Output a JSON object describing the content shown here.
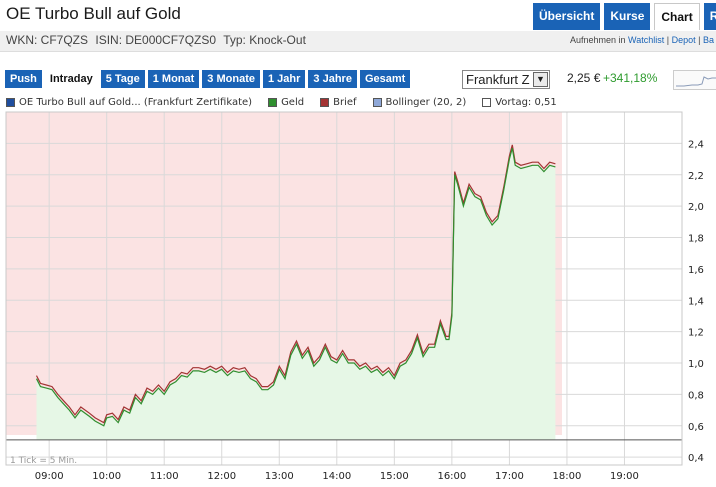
{
  "header": {
    "title": "OE Turbo Bull auf Gold",
    "tabs": [
      {
        "label": "Übersicht",
        "active": false
      },
      {
        "label": "Kurse",
        "active": false
      },
      {
        "label": "Chart",
        "active": true
      },
      {
        "label": "R",
        "active": false
      }
    ]
  },
  "info": {
    "wkn": "WKN: CF7QZS",
    "isin": "ISIN: DE000CF7QZS0",
    "typ": "Typ: Knock-Out",
    "watchlist_prefix": "Aufnehmen in",
    "watchlist_link": "Watchlist",
    "separator": "|",
    "depot_link": "Depot",
    "more_link": "Ba"
  },
  "toolbar": {
    "ranges": [
      {
        "label": "Push",
        "active": false
      },
      {
        "label": "Intraday",
        "active": true
      },
      {
        "label": "5 Tage",
        "active": false
      },
      {
        "label": "1 Monat",
        "active": false
      },
      {
        "label": "3 Monate",
        "active": false
      },
      {
        "label": "1 Jahr",
        "active": false
      },
      {
        "label": "3 Jahre",
        "active": false
      },
      {
        "label": "Gesamt",
        "active": false
      }
    ],
    "exchange_selected": "Frankfurt Z",
    "price": "2,25 €",
    "change": "+341,18%"
  },
  "legend": [
    {
      "label": "OE Turbo Bull auf Gold... (Frankfurt Zertifikate)",
      "color": "#1f4e9e"
    },
    {
      "label": "Geld",
      "color": "#2f8f2f"
    },
    {
      "label": "Brief",
      "color": "#a33333"
    },
    {
      "label": "Bollinger (20, 2)",
      "color": "#8fa8d8"
    },
    {
      "label": "Vortag: 0,51",
      "color": "#ffffff"
    }
  ],
  "colors": {
    "bid": "#2f8f2f",
    "ask": "#a33333",
    "above_prev": "#e6f7e6",
    "below_prev": "#fbe3e3",
    "prev_close_line": "#555555"
  },
  "chart_data": {
    "type": "line",
    "ylim": [
      0.35,
      2.6
    ],
    "y_ticks": [
      0.4,
      0.6,
      0.8,
      1.0,
      1.2,
      1.4,
      1.6,
      1.8,
      2.0,
      2.2,
      2.4
    ],
    "y_tick_labels": [
      "0,4",
      "0,6",
      "0,8",
      "1,0",
      "1,2",
      "1,4",
      "1,6",
      "1,8",
      "2,0",
      "2,2",
      "2,4"
    ],
    "x_tick_labels": [
      "09:00",
      "10:00",
      "11:00",
      "12:00",
      "13:00",
      "14:00",
      "15:00",
      "16:00",
      "17:00",
      "18:00",
      "19:00"
    ],
    "x_range_hours": [
      8.25,
      20.0
    ],
    "prev_close": 0.51,
    "note": "1 Tick = 5 Min.",
    "series": [
      {
        "name": "Geld",
        "x": [
          8.78,
          8.85,
          8.95,
          9.05,
          9.15,
          9.25,
          9.35,
          9.45,
          9.55,
          9.7,
          9.8,
          9.95,
          10.0,
          10.1,
          10.2,
          10.3,
          10.4,
          10.5,
          10.6,
          10.7,
          10.8,
          10.9,
          11.0,
          11.1,
          11.2,
          11.3,
          11.4,
          11.5,
          11.6,
          11.7,
          11.8,
          11.9,
          12.0,
          12.1,
          12.2,
          12.3,
          12.4,
          12.5,
          12.6,
          12.7,
          12.8,
          12.9,
          13.0,
          13.1,
          13.2,
          13.3,
          13.4,
          13.5,
          13.6,
          13.7,
          13.8,
          13.9,
          14.0,
          14.1,
          14.2,
          14.3,
          14.4,
          14.5,
          14.6,
          14.7,
          14.8,
          14.9,
          15.0,
          15.1,
          15.2,
          15.3,
          15.4,
          15.5,
          15.6,
          15.7,
          15.8,
          15.9,
          15.95,
          16.0,
          16.02,
          16.05,
          16.1,
          16.2,
          16.3,
          16.4,
          16.5,
          16.6,
          16.7,
          16.8,
          16.9,
          17.0,
          17.05,
          17.1,
          17.2,
          17.3,
          17.4,
          17.5,
          17.6,
          17.7,
          17.8
        ],
        "values": [
          0.9,
          0.85,
          0.84,
          0.83,
          0.78,
          0.74,
          0.7,
          0.65,
          0.7,
          0.66,
          0.63,
          0.6,
          0.65,
          0.66,
          0.62,
          0.7,
          0.68,
          0.78,
          0.74,
          0.82,
          0.8,
          0.84,
          0.8,
          0.86,
          0.88,
          0.92,
          0.91,
          0.95,
          0.95,
          0.94,
          0.96,
          0.94,
          0.96,
          0.92,
          0.95,
          0.94,
          0.95,
          0.9,
          0.88,
          0.83,
          0.83,
          0.86,
          0.96,
          0.9,
          1.05,
          1.12,
          1.03,
          1.08,
          0.98,
          1.02,
          1.1,
          1.02,
          1.0,
          1.06,
          1.0,
          1.0,
          0.96,
          0.98,
          0.94,
          0.96,
          0.92,
          0.95,
          0.9,
          0.98,
          1.0,
          1.06,
          1.16,
          1.04,
          1.1,
          1.1,
          1.25,
          1.15,
          1.15,
          1.3,
          1.65,
          2.2,
          2.14,
          2.0,
          2.12,
          2.06,
          2.04,
          1.94,
          1.88,
          1.92,
          2.1,
          2.3,
          2.37,
          2.26,
          2.24,
          2.25,
          2.26,
          2.26,
          2.22,
          2.26,
          2.25
        ]
      },
      {
        "name": "Brief",
        "x": [
          8.78,
          8.85,
          8.95,
          9.05,
          9.15,
          9.25,
          9.35,
          9.45,
          9.55,
          9.7,
          9.8,
          9.95,
          10.0,
          10.1,
          10.2,
          10.3,
          10.4,
          10.5,
          10.6,
          10.7,
          10.8,
          10.9,
          11.0,
          11.1,
          11.2,
          11.3,
          11.4,
          11.5,
          11.6,
          11.7,
          11.8,
          11.9,
          12.0,
          12.1,
          12.2,
          12.3,
          12.4,
          12.5,
          12.6,
          12.7,
          12.8,
          12.9,
          13.0,
          13.1,
          13.2,
          13.3,
          13.4,
          13.5,
          13.6,
          13.7,
          13.8,
          13.9,
          14.0,
          14.1,
          14.2,
          14.3,
          14.4,
          14.5,
          14.6,
          14.7,
          14.8,
          14.9,
          15.0,
          15.1,
          15.2,
          15.3,
          15.4,
          15.5,
          15.6,
          15.7,
          15.8,
          15.9,
          15.95,
          16.0,
          16.02,
          16.05,
          16.1,
          16.2,
          16.3,
          16.4,
          16.5,
          16.6,
          16.7,
          16.8,
          16.9,
          17.0,
          17.05,
          17.1,
          17.2,
          17.3,
          17.4,
          17.5,
          17.6,
          17.7,
          17.8
        ],
        "values": [
          0.92,
          0.87,
          0.86,
          0.85,
          0.8,
          0.76,
          0.72,
          0.67,
          0.72,
          0.68,
          0.65,
          0.62,
          0.67,
          0.68,
          0.64,
          0.72,
          0.7,
          0.8,
          0.76,
          0.84,
          0.82,
          0.86,
          0.82,
          0.88,
          0.9,
          0.94,
          0.93,
          0.97,
          0.97,
          0.96,
          0.98,
          0.96,
          0.98,
          0.94,
          0.97,
          0.96,
          0.97,
          0.92,
          0.9,
          0.85,
          0.85,
          0.88,
          0.98,
          0.92,
          1.07,
          1.14,
          1.05,
          1.1,
          1.0,
          1.04,
          1.12,
          1.04,
          1.02,
          1.08,
          1.02,
          1.02,
          0.98,
          1.0,
          0.96,
          0.98,
          0.94,
          0.97,
          0.92,
          1.0,
          1.02,
          1.08,
          1.18,
          1.06,
          1.12,
          1.12,
          1.27,
          1.17,
          1.17,
          1.32,
          1.67,
          2.22,
          2.16,
          2.02,
          2.14,
          2.08,
          2.06,
          1.96,
          1.9,
          1.94,
          2.12,
          2.32,
          2.39,
          2.28,
          2.26,
          2.27,
          2.28,
          2.28,
          2.24,
          2.28,
          2.27
        ]
      }
    ]
  }
}
